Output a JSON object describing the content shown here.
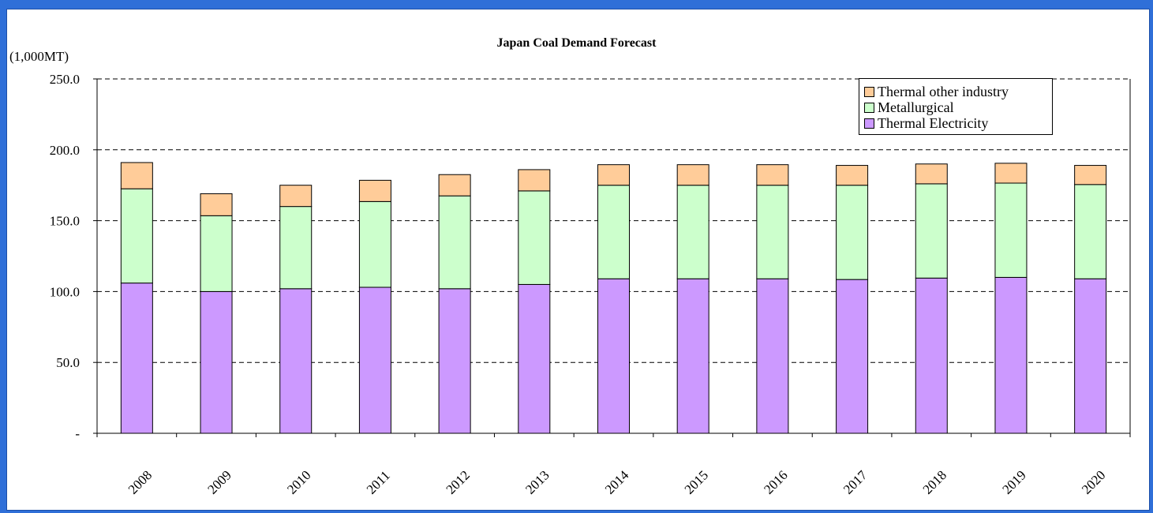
{
  "chart_data": {
    "type": "bar",
    "stacked": true,
    "title": "Japan Coal Demand Forecast",
    "ylabel": "(1,000MT)",
    "xlabel": "",
    "ylim": [
      0,
      250
    ],
    "y_ticks": [
      {
        "value": 0,
        "label": "-"
      },
      {
        "value": 50,
        "label": "50.0"
      },
      {
        "value": 100,
        "label": "100.0"
      },
      {
        "value": 150,
        "label": "150.0"
      },
      {
        "value": 200,
        "label": "200.0"
      },
      {
        "value": 250,
        "label": "250.0"
      }
    ],
    "grid": true,
    "legend_position": "top-right",
    "categories": [
      "2008",
      "2009",
      "2010",
      "2011",
      "2012",
      "2013",
      "2014",
      "2015",
      "2016",
      "2017",
      "2018",
      "2019",
      "2020"
    ],
    "series": [
      {
        "name": "Thermal Electricity",
        "color": "#cc99ff",
        "values": [
          106,
          100,
          102,
          103,
          102,
          105,
          109,
          109,
          109,
          108.5,
          109.5,
          110,
          109
        ]
      },
      {
        "name": "Metallurgical",
        "color": "#ccffcc",
        "values": [
          66.5,
          53.5,
          58,
          60.5,
          65.5,
          66,
          66,
          66,
          66,
          66.5,
          66.5,
          66.5,
          66.5
        ]
      },
      {
        "name": "Thermal other industry",
        "color": "#ffcc99",
        "values": [
          18.5,
          15.5,
          15,
          15,
          15,
          15,
          14.5,
          14.5,
          14.5,
          14,
          14,
          14,
          13.5
        ]
      }
    ]
  }
}
